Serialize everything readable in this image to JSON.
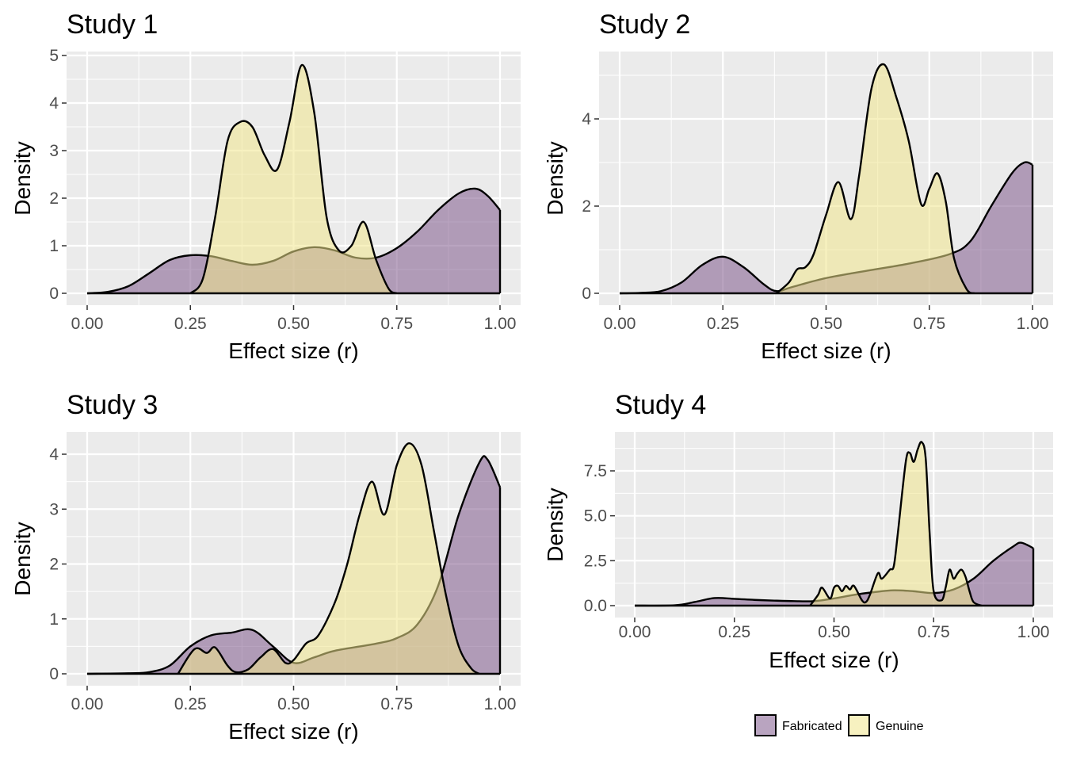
{
  "colors": {
    "panel_bg": "#ebebeb",
    "grid": "#ffffff",
    "fabricated": "#7f5a8d",
    "genuine": "#f0e68c",
    "outline": "#000000"
  },
  "legend": {
    "position": "bottom-right",
    "items": [
      {
        "label": "Fabricated",
        "color": "#7f5a8d"
      },
      {
        "label": "Genuine",
        "color": "#f0e68c"
      }
    ]
  },
  "chart_data": [
    {
      "type": "area",
      "title": "Study 1",
      "xlabel": "Effect size (r)",
      "ylabel": "Density",
      "xlim": [
        0,
        1
      ],
      "ylim": [
        0,
        5
      ],
      "xticks": [
        "0.00",
        "0.25",
        "0.50",
        "0.75",
        "1.00"
      ],
      "yticks": [
        "0",
        "1",
        "2",
        "3",
        "4",
        "5"
      ],
      "series": [
        {
          "name": "Fabricated",
          "x": [
            0,
            0.05,
            0.1,
            0.15,
            0.2,
            0.25,
            0.3,
            0.35,
            0.4,
            0.45,
            0.5,
            0.55,
            0.6,
            0.65,
            0.7,
            0.75,
            0.8,
            0.85,
            0.9,
            0.94,
            0.97,
            1
          ],
          "y": [
            0,
            0.03,
            0.15,
            0.42,
            0.7,
            0.8,
            0.78,
            0.68,
            0.6,
            0.68,
            0.88,
            0.97,
            0.9,
            0.75,
            0.75,
            0.95,
            1.3,
            1.75,
            2.1,
            2.2,
            2.05,
            1.75
          ]
        },
        {
          "name": "Genuine",
          "x": [
            0.25,
            0.28,
            0.31,
            0.34,
            0.37,
            0.4,
            0.43,
            0.46,
            0.49,
            0.52,
            0.55,
            0.58,
            0.61,
            0.64,
            0.67,
            0.7,
            0.73,
            0.75
          ],
          "y": [
            0,
            0.3,
            1.6,
            3.2,
            3.6,
            3.5,
            2.9,
            2.6,
            3.6,
            4.8,
            3.8,
            1.6,
            0.9,
            1.0,
            1.5,
            0.7,
            0.1,
            0
          ]
        }
      ]
    },
    {
      "type": "area",
      "title": "Study 2",
      "xlabel": "Effect size (r)",
      "ylabel": "Density",
      "xlim": [
        0,
        1
      ],
      "ylim": [
        0,
        5.3
      ],
      "xticks": [
        "0.00",
        "0.25",
        "0.50",
        "0.75",
        "1.00"
      ],
      "yticks": [
        "0",
        "2",
        "4"
      ],
      "series": [
        {
          "name": "Fabricated",
          "x": [
            0,
            0.05,
            0.1,
            0.15,
            0.2,
            0.25,
            0.3,
            0.35,
            0.38,
            0.42,
            0.5,
            0.6,
            0.7,
            0.8,
            0.85,
            0.9,
            0.95,
            0.98,
            1
          ],
          "y": [
            0,
            0.01,
            0.05,
            0.25,
            0.65,
            0.84,
            0.6,
            0.2,
            0.05,
            0.15,
            0.35,
            0.52,
            0.68,
            0.9,
            1.2,
            2.0,
            2.75,
            3.0,
            2.95
          ]
        },
        {
          "name": "Genuine",
          "x": [
            0.38,
            0.41,
            0.43,
            0.45,
            0.47,
            0.5,
            0.53,
            0.56,
            0.58,
            0.61,
            0.64,
            0.67,
            0.7,
            0.73,
            0.75,
            0.77,
            0.79,
            0.81,
            0.84,
            0.86
          ],
          "y": [
            0,
            0.25,
            0.55,
            0.6,
            0.9,
            1.8,
            2.55,
            1.7,
            2.7,
            4.7,
            5.25,
            4.5,
            3.5,
            2.05,
            2.4,
            2.75,
            2.1,
            0.8,
            0.1,
            0
          ]
        }
      ]
    },
    {
      "type": "area",
      "title": "Study 3",
      "xlabel": "Effect size (r)",
      "ylabel": "Density",
      "xlim": [
        0,
        1
      ],
      "ylim": [
        0,
        4.4
      ],
      "xticks": [
        "0.00",
        "0.25",
        "0.50",
        "0.75",
        "1.00"
      ],
      "yticks": [
        "0",
        "1",
        "2",
        "3",
        "4"
      ],
      "series": [
        {
          "name": "Fabricated",
          "x": [
            0,
            0.1,
            0.15,
            0.2,
            0.25,
            0.3,
            0.35,
            0.4,
            0.45,
            0.5,
            0.55,
            0.6,
            0.7,
            0.75,
            0.8,
            0.85,
            0.9,
            0.95,
            0.97,
            1
          ],
          "y": [
            0,
            0.01,
            0.03,
            0.15,
            0.5,
            0.7,
            0.75,
            0.8,
            0.5,
            0.2,
            0.3,
            0.42,
            0.55,
            0.65,
            0.9,
            1.6,
            2.9,
            3.85,
            3.9,
            3.4
          ]
        },
        {
          "name": "Genuine",
          "x": [
            0.22,
            0.26,
            0.29,
            0.31,
            0.34,
            0.36,
            0.39,
            0.42,
            0.45,
            0.48,
            0.5,
            0.53,
            0.56,
            0.6,
            0.63,
            0.66,
            0.69,
            0.72,
            0.75,
            0.78,
            0.81,
            0.84,
            0.87,
            0.9,
            0.93,
            0.95
          ],
          "y": [
            0,
            0.45,
            0.38,
            0.48,
            0.15,
            0.03,
            0.08,
            0.3,
            0.45,
            0.2,
            0.25,
            0.55,
            0.7,
            1.3,
            2.0,
            2.9,
            3.5,
            2.9,
            3.8,
            4.2,
            3.8,
            2.6,
            1.4,
            0.5,
            0.1,
            0
          ]
        }
      ]
    },
    {
      "type": "area",
      "title": "Study 4",
      "xlabel": "Effect size (r)",
      "ylabel": "Density",
      "xlim": [
        0,
        1
      ],
      "ylim": [
        0,
        9.1
      ],
      "xticks": [
        "0.00",
        "0.25",
        "0.50",
        "0.75",
        "1.00"
      ],
      "yticks": [
        "0.0",
        "2.5",
        "5.0",
        "7.5"
      ],
      "series": [
        {
          "name": "Fabricated",
          "x": [
            0,
            0.1,
            0.15,
            0.2,
            0.25,
            0.3,
            0.35,
            0.4,
            0.45,
            0.5,
            0.55,
            0.6,
            0.65,
            0.7,
            0.75,
            0.8,
            0.85,
            0.9,
            0.95,
            0.97,
            1
          ],
          "y": [
            0,
            0.02,
            0.2,
            0.42,
            0.38,
            0.32,
            0.28,
            0.25,
            0.25,
            0.4,
            0.6,
            0.75,
            0.85,
            0.8,
            0.7,
            0.9,
            1.5,
            2.5,
            3.3,
            3.5,
            3.2
          ]
        },
        {
          "name": "Genuine",
          "x": [
            0.44,
            0.46,
            0.47,
            0.49,
            0.5,
            0.51,
            0.52,
            0.53,
            0.54,
            0.55,
            0.57,
            0.58,
            0.59,
            0.61,
            0.62,
            0.64,
            0.65,
            0.66,
            0.68,
            0.69,
            0.7,
            0.71,
            0.72,
            0.73,
            0.74,
            0.75,
            0.77,
            0.78,
            0.79,
            0.8,
            0.81,
            0.82,
            0.83,
            0.84,
            0.85,
            0.87
          ],
          "y": [
            0,
            0.6,
            1.0,
            0.4,
            1.0,
            1.1,
            0.8,
            1.1,
            0.9,
            1.1,
            0.3,
            0.2,
            0.6,
            1.8,
            1.5,
            2.0,
            2.2,
            4.0,
            8.0,
            8.5,
            8.0,
            8.7,
            9.1,
            8.2,
            4.0,
            0.8,
            0.3,
            1.0,
            2.0,
            1.5,
            1.8,
            2.0,
            1.6,
            0.8,
            0.2,
            0
          ]
        }
      ]
    }
  ]
}
